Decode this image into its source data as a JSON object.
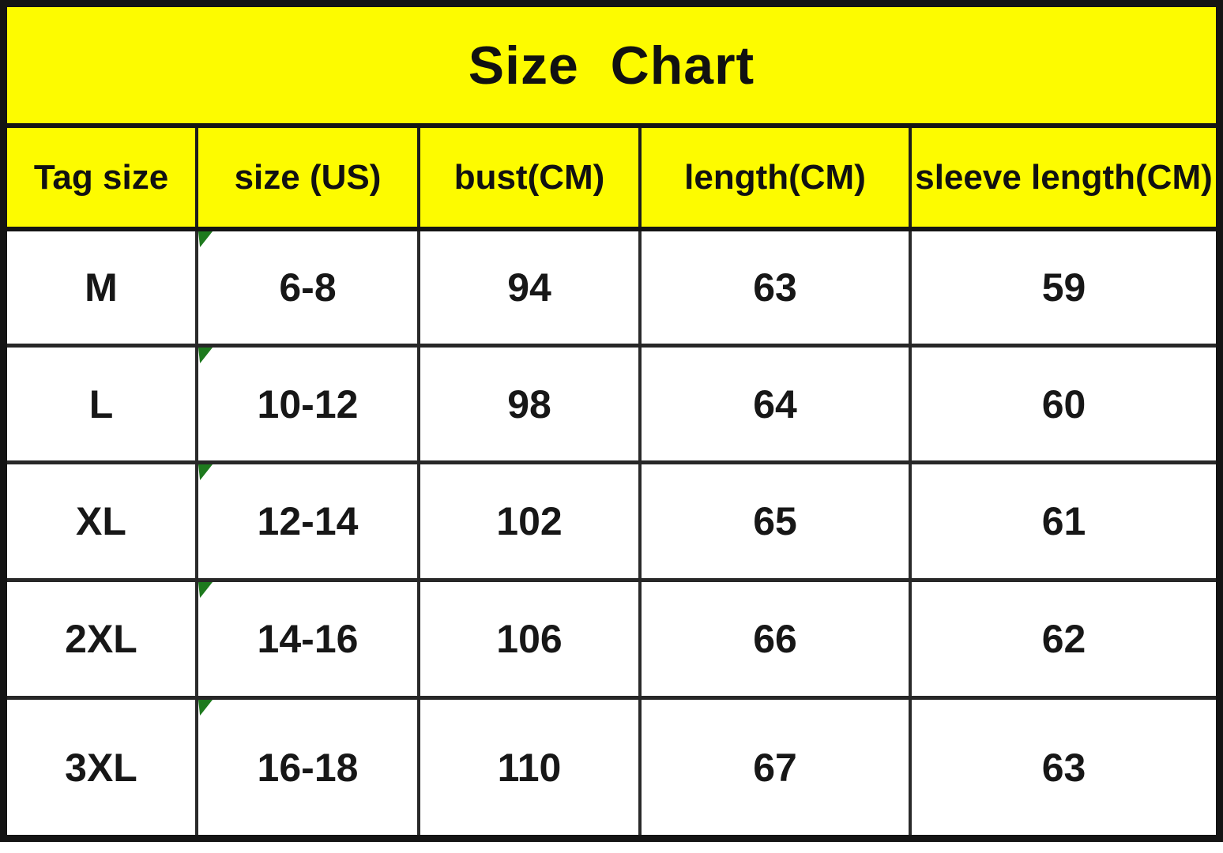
{
  "chart_data": {
    "type": "table",
    "title": "Size  Chart",
    "columns": [
      "Tag size",
      "size (US)",
      "bust(CM)",
      "length(CM)",
      "sleeve length(CM)"
    ],
    "rows": [
      {
        "cells": [
          "M",
          "6-8",
          "94",
          "63",
          "59"
        ]
      },
      {
        "cells": [
          "L",
          "10-12",
          "98",
          "64",
          "60"
        ]
      },
      {
        "cells": [
          "XL",
          "12-14",
          "102",
          "65",
          "61"
        ]
      },
      {
        "cells": [
          "2XL",
          "14-16",
          "106",
          "66",
          "62"
        ]
      },
      {
        "cells": [
          "3XL",
          "16-18",
          "110",
          "67",
          "63"
        ]
      }
    ],
    "units": "CM",
    "layout": "title banner on top, header row, 5 data rows, all cells center-aligned"
  },
  "colors": {
    "banner_yellow": "#fdfb00",
    "grid_black": "#141414",
    "text_black": "#111111",
    "marker_green": "#1e7a1e",
    "row_white": "#ffffff"
  },
  "icons": {
    "corner_marker": "green-corner-triangle-error-indicator"
  }
}
